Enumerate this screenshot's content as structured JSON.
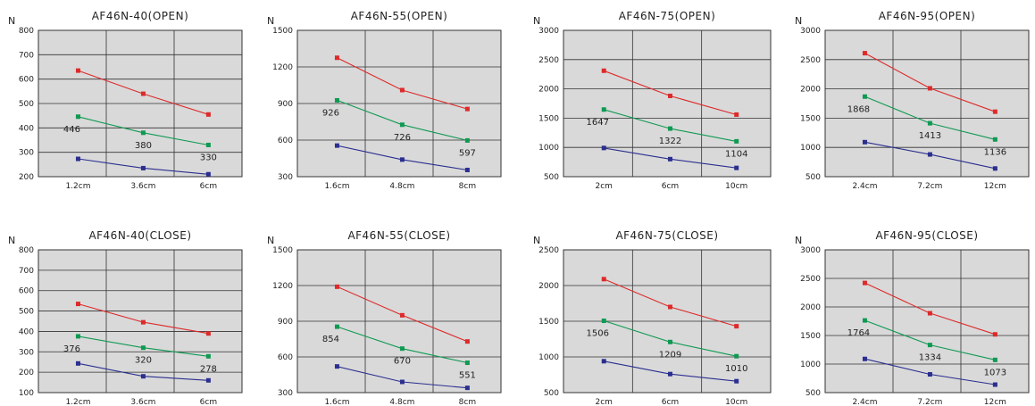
{
  "colors": {
    "top": "#dd2a2a",
    "middle": "#0f9a52",
    "bottom": "#2b2f8f",
    "plot_bg": "#d9d9d9",
    "grid": "#333333"
  },
  "chart_data": [
    {
      "type": "line",
      "title": "AF46N-40(OPEN)",
      "ylabel": "N",
      "xlabel": "",
      "categories": [
        "1.2cm",
        "3.6cm",
        "6cm"
      ],
      "ylim": [
        200,
        800
      ],
      "yticks": [
        200,
        300,
        400,
        500,
        600,
        700,
        800
      ],
      "series": [
        {
          "values": [
            635,
            540,
            455
          ]
        },
        {
          "values": [
            446,
            380,
            330
          ],
          "labels": [
            "446",
            "380",
            "330"
          ]
        },
        {
          "values": [
            273,
            235,
            210
          ]
        }
      ]
    },
    {
      "type": "line",
      "title": "AF46N-55(OPEN)",
      "ylabel": "N",
      "xlabel": "",
      "categories": [
        "1.6cm",
        "4.8cm",
        "8cm"
      ],
      "ylim": [
        300,
        1500
      ],
      "yticks": [
        300,
        600,
        900,
        1200,
        1500
      ],
      "series": [
        {
          "values": [
            1275,
            1010,
            855
          ]
        },
        {
          "values": [
            926,
            726,
            597
          ],
          "labels": [
            "926",
            "726",
            "597"
          ]
        },
        {
          "values": [
            555,
            440,
            355
          ]
        }
      ]
    },
    {
      "type": "line",
      "title": "AF46N-75(OPEN)",
      "ylabel": "N",
      "xlabel": "",
      "categories": [
        "2cm",
        "6cm",
        "10cm"
      ],
      "ylim": [
        500,
        3000
      ],
      "yticks": [
        500,
        1000,
        1500,
        2000,
        2500,
        3000
      ],
      "series": [
        {
          "values": [
            2310,
            1880,
            1560
          ]
        },
        {
          "values": [
            1647,
            1322,
            1104
          ],
          "labels": [
            "1647",
            "1322",
            "1104"
          ]
        },
        {
          "values": [
            990,
            800,
            650
          ]
        }
      ]
    },
    {
      "type": "line",
      "title": "AF46N-95(OPEN)",
      "ylabel": "N",
      "xlabel": "",
      "categories": [
        "2.4cm",
        "7.2cm",
        "12cm"
      ],
      "ylim": [
        500,
        3000
      ],
      "yticks": [
        500,
        1000,
        1500,
        2000,
        2500,
        3000
      ],
      "series": [
        {
          "values": [
            2610,
            2010,
            1610
          ]
        },
        {
          "values": [
            1868,
            1413,
            1136
          ],
          "labels": [
            "1868",
            "1413",
            "1136"
          ]
        },
        {
          "values": [
            1090,
            880,
            640
          ]
        }
      ]
    },
    {
      "type": "line",
      "title": "AF46N-40(CLOSE)",
      "ylabel": "N",
      "xlabel": "",
      "categories": [
        "1.2cm",
        "3.6cm",
        "6cm"
      ],
      "ylim": [
        100,
        800
      ],
      "yticks": [
        100,
        200,
        300,
        400,
        500,
        600,
        700,
        800
      ],
      "series": [
        {
          "values": [
            535,
            445,
            390
          ]
        },
        {
          "values": [
            376,
            320,
            278
          ],
          "labels": [
            "376",
            "320",
            "278"
          ]
        },
        {
          "values": [
            243,
            180,
            160
          ]
        }
      ]
    },
    {
      "type": "line",
      "title": "AF46N-55(CLOSE)",
      "ylabel": "N",
      "xlabel": "",
      "categories": [
        "1.6cm",
        "4.8cm",
        "8cm"
      ],
      "ylim": [
        300,
        1500
      ],
      "yticks": [
        300,
        600,
        900,
        1200,
        1500
      ],
      "series": [
        {
          "values": [
            1190,
            950,
            730
          ]
        },
        {
          "values": [
            854,
            670,
            551
          ],
          "labels": [
            "854",
            "670",
            "551"
          ]
        },
        {
          "values": [
            520,
            390,
            340
          ]
        }
      ]
    },
    {
      "type": "line",
      "title": "AF46N-75(CLOSE)",
      "ylabel": "N",
      "xlabel": "",
      "categories": [
        "2cm",
        "6cm",
        "10cm"
      ],
      "ylim": [
        500,
        2500
      ],
      "yticks": [
        500,
        1000,
        1500,
        2000,
        2500
      ],
      "series": [
        {
          "values": [
            2090,
            1700,
            1430
          ]
        },
        {
          "values": [
            1506,
            1209,
            1010
          ],
          "labels": [
            "1506",
            "1209",
            "1010"
          ]
        },
        {
          "values": [
            940,
            760,
            660
          ]
        }
      ]
    },
    {
      "type": "line",
      "title": "AF46N-95(CLOSE)",
      "ylabel": "N",
      "xlabel": "",
      "categories": [
        "2.4cm",
        "7.2cm",
        "12cm"
      ],
      "ylim": [
        500,
        3000
      ],
      "yticks": [
        500,
        1000,
        1500,
        2000,
        2500,
        3000
      ],
      "series": [
        {
          "values": [
            2420,
            1890,
            1520
          ]
        },
        {
          "values": [
            1764,
            1334,
            1073
          ],
          "labels": [
            "1764",
            "1334",
            "1073"
          ]
        },
        {
          "values": [
            1090,
            820,
            640
          ]
        }
      ]
    }
  ]
}
